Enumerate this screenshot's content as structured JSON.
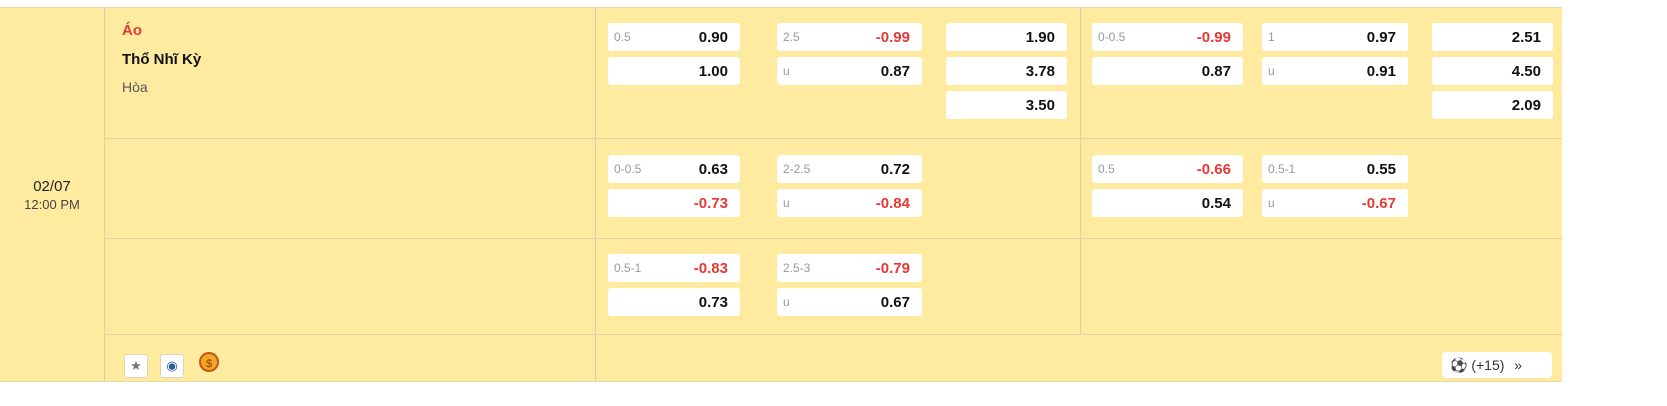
{
  "match": {
    "date": "02/07",
    "time": "12:00 PM",
    "home": "Áo",
    "away": "Thổ Nhĩ Kỳ",
    "draw": "Hòa"
  },
  "rows": [
    {
      "ft_hdp": [
        [
          "0.5",
          "0.90"
        ],
        [
          "",
          "1.00"
        ]
      ],
      "ft_ou": [
        [
          "2.5",
          "-0.99"
        ],
        [
          "u",
          "0.87"
        ]
      ],
      "ft_1x2": [
        "1.90",
        "3.78",
        "3.50"
      ],
      "h1_hdp": [
        [
          "0-0.5",
          "-0.99"
        ],
        [
          "",
          "0.87"
        ]
      ],
      "h1_ou": [
        [
          "1",
          "0.97"
        ],
        [
          "u",
          "0.91"
        ]
      ],
      "h1_1x2": [
        "2.51",
        "4.50",
        "2.09"
      ]
    },
    {
      "ft_hdp": [
        [
          "0-0.5",
          "0.63"
        ],
        [
          "",
          "-0.73"
        ]
      ],
      "ft_ou": [
        [
          "2-2.5",
          "0.72"
        ],
        [
          "u",
          "-0.84"
        ]
      ],
      "h1_hdp": [
        [
          "0.5",
          "-0.66"
        ],
        [
          "",
          "0.54"
        ]
      ],
      "h1_ou": [
        [
          "0.5-1",
          "0.55"
        ],
        [
          "u",
          "-0.67"
        ]
      ]
    },
    {
      "ft_hdp": [
        [
          "0.5-1",
          "-0.83"
        ],
        [
          "",
          "0.73"
        ]
      ],
      "ft_ou": [
        [
          "2.5-3",
          "-0.79"
        ],
        [
          "u",
          "0.67"
        ]
      ]
    }
  ],
  "footer": {
    "more_label": "(+15)",
    "icons": [
      "star-icon",
      "eye-icon",
      "coin-icon",
      "soccer-ball-icon",
      "double-chevron-right-icon"
    ]
  },
  "colors": {
    "background": "#ffeba0",
    "negative": "#e53935"
  }
}
